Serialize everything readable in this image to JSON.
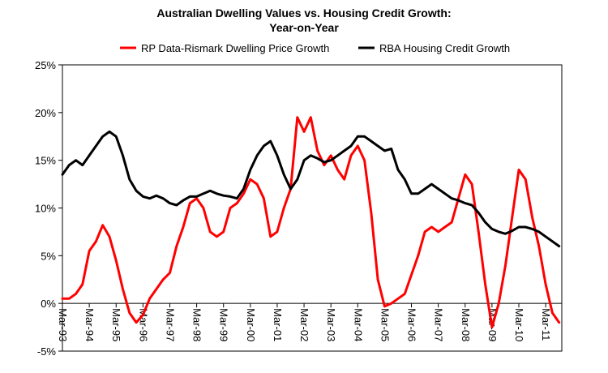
{
  "chart_data": {
    "type": "line",
    "title": "Australian Dwelling Values vs. Housing Credit Growth:",
    "subtitle": "Year-on-Year",
    "xlabel": "",
    "ylabel": "",
    "ylim": [
      -5,
      25
    ],
    "y_ticks": [
      "25%",
      "20%",
      "15%",
      "10%",
      "5%",
      "0%",
      "-5%"
    ],
    "y_tick_values": [
      25,
      20,
      15,
      10,
      5,
      0,
      -5
    ],
    "x_ticks": [
      "Mar-93",
      "Mar-94",
      "Mar-95",
      "Mar-96",
      "Mar-97",
      "Mar-98",
      "Mar-99",
      "Mar-00",
      "Mar-01",
      "Mar-02",
      "Mar-03",
      "Mar-04",
      "Mar-05",
      "Mar-06",
      "Mar-07",
      "Mar-08",
      "Mar-09",
      "Mar-10",
      "Mar-11"
    ],
    "x_tick_values": [
      1993,
      1994,
      1995,
      1996,
      1997,
      1998,
      1999,
      2000,
      2001,
      2002,
      2003,
      2004,
      2005,
      2006,
      2007,
      2008,
      2009,
      2010,
      2011
    ],
    "xlim": [
      1993,
      2011.6
    ],
    "grid": false,
    "legend_position": "top",
    "series": [
      {
        "name": "RP Data-Rismark Dwelling Price Growth",
        "color": "#ff0000",
        "x": [
          1993.0,
          1993.25,
          1993.5,
          1993.75,
          1994.0,
          1994.25,
          1994.5,
          1994.75,
          1995.0,
          1995.25,
          1995.5,
          1995.75,
          1996.0,
          1996.25,
          1996.5,
          1996.75,
          1997.0,
          1997.25,
          1997.5,
          1997.75,
          1998.0,
          1998.25,
          1998.5,
          1998.75,
          1999.0,
          1999.25,
          1999.5,
          1999.75,
          2000.0,
          2000.25,
          2000.5,
          2000.75,
          2001.0,
          2001.25,
          2001.5,
          2001.75,
          2002.0,
          2002.25,
          2002.5,
          2002.75,
          2003.0,
          2003.25,
          2003.5,
          2003.75,
          2004.0,
          2004.25,
          2004.5,
          2004.75,
          2005.0,
          2005.25,
          2005.5,
          2005.75,
          2006.0,
          2006.25,
          2006.5,
          2006.75,
          2007.0,
          2007.25,
          2007.5,
          2007.75,
          2008.0,
          2008.25,
          2008.5,
          2008.75,
          2009.0,
          2009.25,
          2009.5,
          2009.75,
          2010.0,
          2010.25,
          2010.5,
          2010.75,
          2011.0,
          2011.25,
          2011.5
        ],
        "values": [
          0.5,
          0.5,
          1.0,
          2.0,
          5.5,
          6.5,
          8.2,
          7.0,
          4.5,
          1.5,
          -1.0,
          -2.0,
          -1.2,
          0.5,
          1.5,
          2.5,
          3.2,
          6.0,
          8.0,
          10.5,
          11.0,
          10.0,
          7.5,
          7.0,
          7.5,
          10.0,
          10.5,
          11.5,
          13.0,
          12.5,
          11.0,
          7.0,
          7.5,
          10.0,
          12.0,
          19.5,
          18.0,
          19.5,
          16.0,
          14.5,
          15.5,
          14.0,
          13.0,
          15.5,
          16.5,
          15.0,
          9.5,
          2.5,
          -0.3,
          0.0,
          0.5,
          1.0,
          3.0,
          5.0,
          7.5,
          8.0,
          7.5,
          8.0,
          8.5,
          11.0,
          13.5,
          12.5,
          7.5,
          2.0,
          -2.5,
          0.0,
          4.0,
          9.0,
          14.0,
          13.0,
          9.0,
          6.0,
          2.0,
          -1.0,
          -2.0
        ]
      },
      {
        "name": "RBA Housing Credit Growth",
        "color": "#000000",
        "x": [
          1993.0,
          1993.25,
          1993.5,
          1993.75,
          1994.0,
          1994.25,
          1994.5,
          1994.75,
          1995.0,
          1995.25,
          1995.5,
          1995.75,
          1996.0,
          1996.25,
          1996.5,
          1996.75,
          1997.0,
          1997.25,
          1997.5,
          1997.75,
          1998.0,
          1998.25,
          1998.5,
          1998.75,
          1999.0,
          1999.25,
          1999.5,
          1999.75,
          2000.0,
          2000.25,
          2000.5,
          2000.75,
          2001.0,
          2001.25,
          2001.5,
          2001.75,
          2002.0,
          2002.25,
          2002.5,
          2002.75,
          2003.0,
          2003.25,
          2003.5,
          2003.75,
          2004.0,
          2004.25,
          2004.5,
          2004.75,
          2005.0,
          2005.25,
          2005.5,
          2005.75,
          2006.0,
          2006.25,
          2006.5,
          2006.75,
          2007.0,
          2007.25,
          2007.5,
          2007.75,
          2008.0,
          2008.25,
          2008.5,
          2008.75,
          2009.0,
          2009.25,
          2009.5,
          2009.75,
          2010.0,
          2010.25,
          2010.5,
          2010.75,
          2011.0,
          2011.25,
          2011.5
        ],
        "values": [
          13.5,
          14.5,
          15.0,
          14.5,
          15.5,
          16.5,
          17.5,
          18.0,
          17.5,
          15.5,
          13.0,
          11.8,
          11.2,
          11.0,
          11.3,
          11.0,
          10.5,
          10.3,
          10.8,
          11.2,
          11.2,
          11.5,
          11.8,
          11.5,
          11.3,
          11.2,
          11.0,
          12.0,
          14.0,
          15.5,
          16.5,
          17.0,
          15.5,
          13.5,
          12.0,
          13.0,
          15.0,
          15.5,
          15.2,
          14.8,
          15.0,
          15.5,
          16.0,
          16.5,
          17.5,
          17.5,
          17.0,
          16.5,
          16.0,
          16.2,
          14.0,
          13.0,
          11.5,
          11.5,
          12.0,
          12.5,
          12.0,
          11.5,
          11.0,
          10.8,
          10.5,
          10.3,
          9.5,
          8.5,
          7.8,
          7.5,
          7.3,
          7.6,
          8.0,
          8.0,
          7.8,
          7.5,
          7.0,
          6.5,
          6.0
        ]
      }
    ]
  }
}
